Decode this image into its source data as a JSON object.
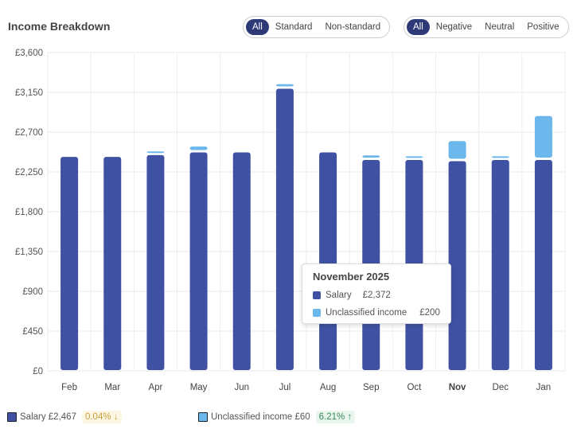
{
  "header": {
    "title": "Income Breakdown"
  },
  "filters": {
    "type": [
      "All",
      "Standard",
      "Non-standard"
    ],
    "type_selected": "All",
    "sentiment": [
      "All",
      "Negative",
      "Neutral",
      "Positive"
    ],
    "sentiment_selected": "All"
  },
  "colors": {
    "salary": "#3f51a3",
    "unclassified": "#6cb8ec"
  },
  "chart_data": {
    "type": "bar",
    "stacked": true,
    "categories": [
      "Feb",
      "Mar",
      "Apr",
      "May",
      "Jun",
      "Jul",
      "Aug",
      "Sep",
      "Oct",
      "Nov",
      "Dec",
      "Jan"
    ],
    "highlighted": "Nov",
    "series": [
      {
        "name": "Salary",
        "values": [
          2420,
          2420,
          2440,
          2470,
          2470,
          3190,
          2470,
          2385,
          2385,
          2372,
          2385,
          2385
        ]
      },
      {
        "name": "Unclassified income",
        "values": [
          0,
          0,
          15,
          40,
          0,
          25,
          0,
          25,
          15,
          200,
          15,
          470
        ]
      }
    ],
    "yticks": [
      "£0",
      "£450",
      "£900",
      "£1,350",
      "£1,800",
      "£2,250",
      "£2,700",
      "£3,150",
      "£3,600"
    ],
    "ylim": [
      0,
      3600
    ],
    "grid": true
  },
  "tooltip": {
    "title": "November 2025",
    "rows": [
      {
        "label": "Salary",
        "value": "£2,372"
      },
      {
        "label": "Unclassified income",
        "value": "£200"
      }
    ]
  },
  "legend": [
    {
      "label": "Salary £2,467",
      "change": "0.04% ↓"
    },
    {
      "label": "Unclassified income £60",
      "change": "6.21% ↑"
    }
  ]
}
